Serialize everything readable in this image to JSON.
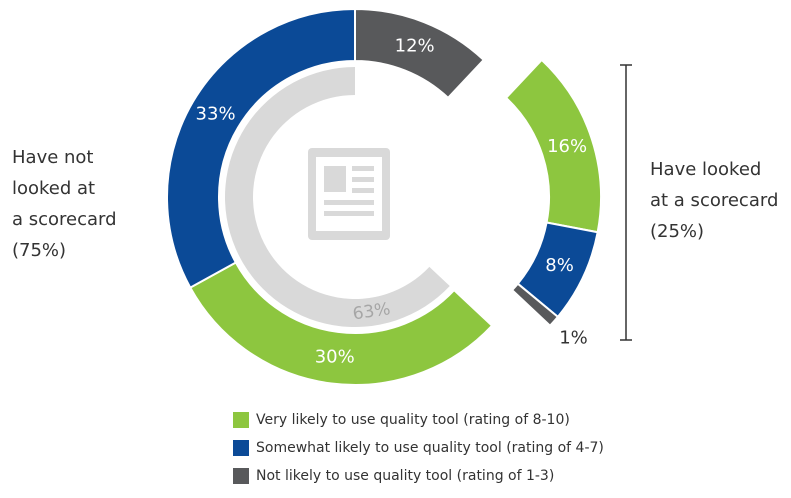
{
  "chart_data": {
    "type": "donut",
    "groups": [
      {
        "lines": [
          "Have looked",
          "at a scorecard",
          "(25%)"
        ]
      },
      {
        "lines": [
          "Have not",
          "looked at",
          "a scorecard",
          "(75%)"
        ]
      }
    ],
    "series": [
      {
        "name": "Very likely to use quality tool (rating of 8-10)",
        "color": "#8dc63f",
        "values": [
          16,
          30
        ],
        "value_labels": [
          "16%",
          "30%"
        ]
      },
      {
        "name": "Somewhat likely to use quality tool (rating of 4-7)",
        "color": "#0b4a97",
        "values": [
          8,
          33
        ],
        "value_labels": [
          "8%",
          "33%"
        ]
      },
      {
        "name": "Not likely to use quality tool (rating of 1-3)",
        "color": "#58595b",
        "values": [
          1,
          12
        ],
        "value_labels": [
          "1%",
          "12%"
        ]
      }
    ],
    "inner_ring": {
      "value": 63,
      "label": "63%",
      "color": "#d9d9d9"
    }
  }
}
